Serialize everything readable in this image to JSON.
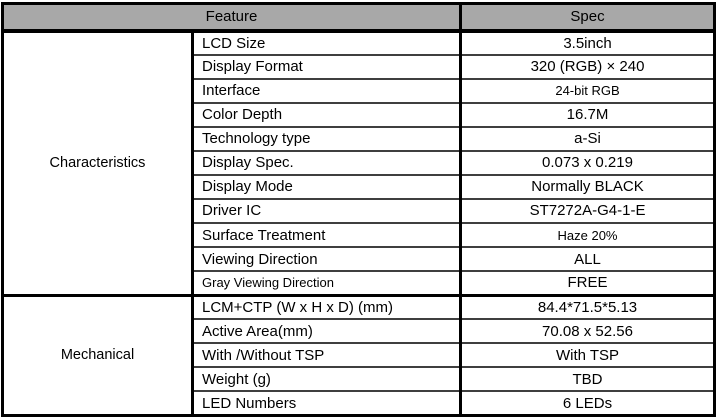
{
  "table": {
    "headers": {
      "feature": "Feature",
      "spec": "Spec"
    },
    "colors": {
      "header_bg": "#a8a8a8",
      "border": "#000000",
      "row_line": "#3f3f3f",
      "text": "#000000"
    },
    "sections": [
      {
        "group": "Characteristics",
        "rows": [
          {
            "feature": "LCD Size",
            "spec": "3.5inch"
          },
          {
            "feature": "Display Format",
            "spec": "320 (RGB) × 240"
          },
          {
            "feature": "Interface",
            "spec": "24-bit RGB",
            "spec_small": true
          },
          {
            "feature": "Color Depth",
            "spec": "16.7M"
          },
          {
            "feature": "Technology type",
            "spec": "a-Si"
          },
          {
            "feature": "Display Spec.",
            "spec": "0.073 x 0.219"
          },
          {
            "feature": "Display Mode",
            "spec": "Normally BLACK"
          },
          {
            "feature": "Driver IC",
            "spec": "ST7272A-G4-1-E"
          },
          {
            "feature": "Surface Treatment",
            "spec": "Haze 20%",
            "spec_small": true
          },
          {
            "feature": "Viewing Direction",
            "spec": "ALL"
          },
          {
            "feature": "Gray Viewing Direction",
            "spec": "FREE",
            "feature_small": true
          }
        ]
      },
      {
        "group": "Mechanical",
        "rows": [
          {
            "feature": "LCM+CTP (W x H x D) (mm)",
            "spec": "84.4*71.5*5.13"
          },
          {
            "feature": "Active Area(mm)",
            "spec": "70.08 x 52.56"
          },
          {
            "feature": "With /Without TSP",
            "spec": "With TSP"
          },
          {
            "feature": "Weight (g)",
            "spec": "TBD"
          },
          {
            "feature": "LED Numbers",
            "spec": "6 LEDs"
          }
        ]
      }
    ]
  }
}
